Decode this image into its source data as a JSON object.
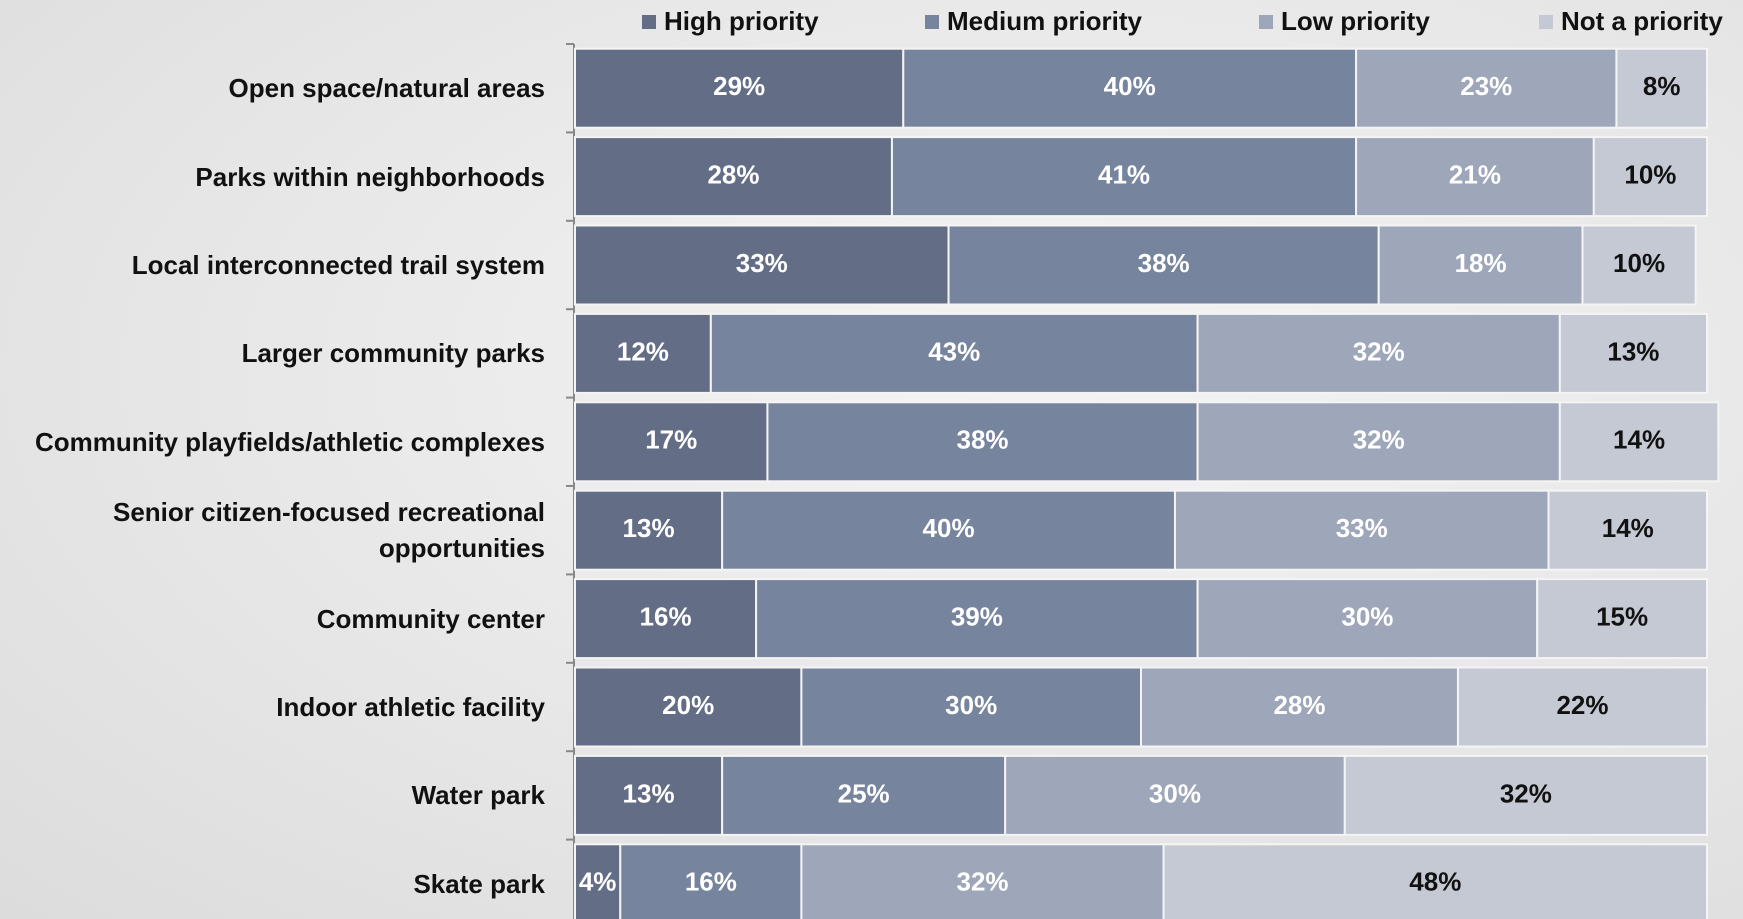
{
  "chart_data": {
    "type": "stacked-bar-horizontal",
    "categories": [
      "Open space/natural areas",
      "Parks within neighborhoods",
      "Local interconnected trail system",
      "Larger community parks",
      "Community playfields/athletic complexes",
      "Senior citizen-focused recreational opportunities",
      "Community center",
      "Indoor athletic facility",
      "Water park",
      "Skate park"
    ],
    "xlim": [
      0,
      100
    ],
    "series": [
      {
        "name": "High priority",
        "color": "#636e86",
        "label_color": "#ffffff",
        "values": [
          29,
          28,
          33,
          12,
          17,
          13,
          16,
          20,
          13,
          4
        ],
        "value_labels": [
          "29%",
          "28%",
          "33%",
          "12%",
          "17%",
          "13%",
          "16%",
          "20%",
          "13%",
          "4%"
        ]
      },
      {
        "name": "Medium priority",
        "color": "#77849e",
        "label_color": "#ffffff",
        "values": [
          40,
          41,
          38,
          43,
          38,
          40,
          39,
          30,
          25,
          16
        ],
        "value_labels": [
          "40%",
          "41%",
          "38%",
          "43%",
          "38%",
          "40%",
          "39%",
          "30%",
          "25%",
          "16%"
        ]
      },
      {
        "name": "Low priority",
        "color": "#9ea6ba",
        "label_color": "#ffffff",
        "values": [
          23,
          21,
          18,
          32,
          32,
          33,
          30,
          28,
          30,
          32
        ],
        "value_labels": [
          "23%",
          "21%",
          "18%",
          "32%",
          "32%",
          "33%",
          "30%",
          "28%",
          "30%",
          "32%"
        ]
      },
      {
        "name": "Not a priority",
        "color": "#c5c9d4",
        "label_color": "#111111",
        "values": [
          8,
          10,
          10,
          13,
          14,
          14,
          15,
          22,
          32,
          48
        ],
        "value_labels": [
          "8%",
          "10%",
          "10%",
          "13%",
          "14%",
          "14%",
          "15%",
          "22%",
          "32%",
          "48%"
        ]
      }
    ]
  }
}
